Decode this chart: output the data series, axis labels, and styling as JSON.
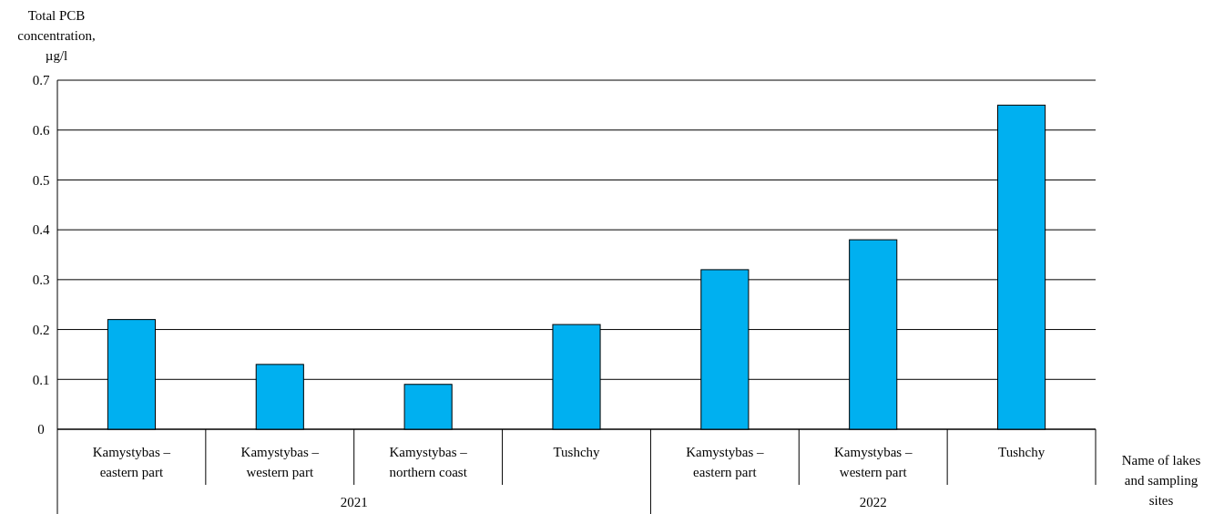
{
  "chart_data": {
    "type": "bar",
    "ylabel": "Total PCB concentration, µg/l",
    "xlabel": "Name of lakes and sampling sites",
    "categories": [
      "Kamystybas – eastern part",
      "Kamystybas – western part",
      "Kamystybas – northern coast",
      "Tushchy",
      "Kamystybas – eastern part",
      "Kamystybas – western part",
      "Tushchy"
    ],
    "values": [
      0.22,
      0.13,
      0.09,
      0.21,
      0.32,
      0.38,
      0.65
    ],
    "color": "#00b0f0",
    "ylim": [
      0,
      0.7
    ],
    "yticks": [
      0,
      0.1,
      0.2,
      0.3,
      0.4,
      0.5,
      0.6,
      0.7
    ],
    "grid": "y",
    "annotations": [
      "2021",
      "2022"
    ]
  }
}
